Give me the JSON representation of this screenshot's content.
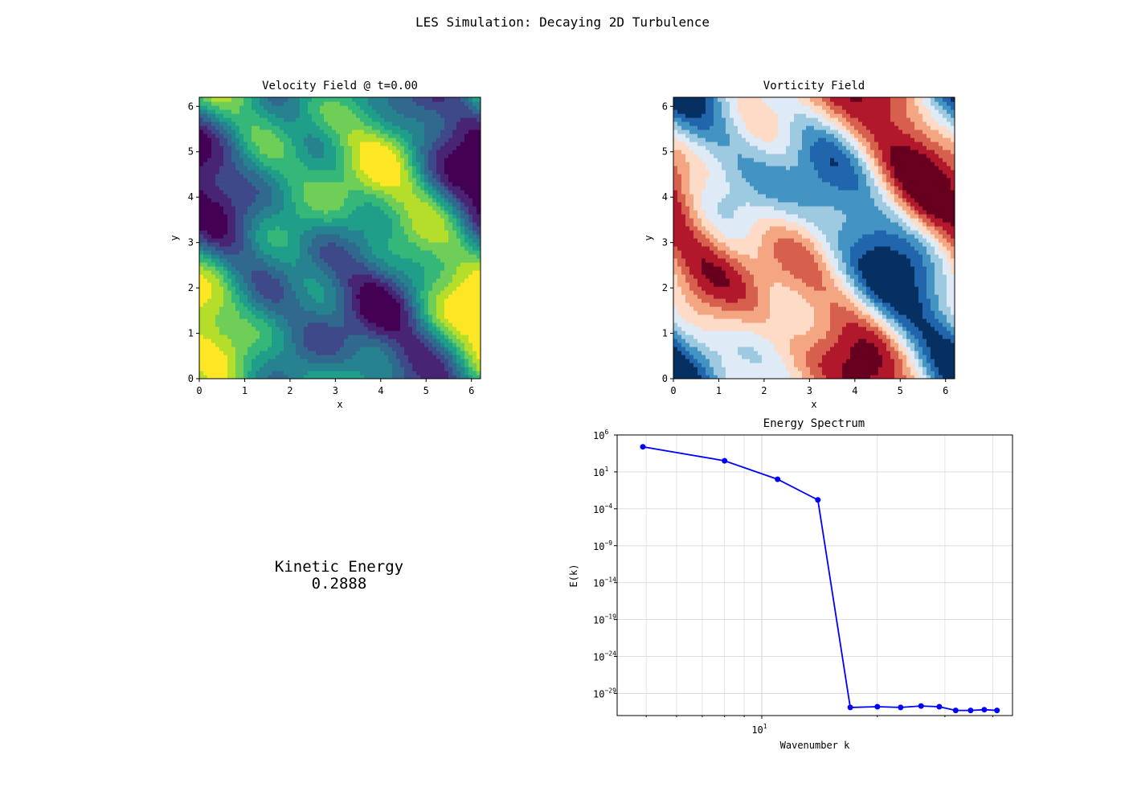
{
  "figure": {
    "title": "LES Simulation: Decaying 2D Turbulence"
  },
  "kinetic_energy": {
    "label": "Kinetic Energy",
    "value": "0.2888"
  },
  "chart_data": [
    {
      "type": "heatmap",
      "title": "Velocity Field @ t=0.00",
      "xlabel": "x",
      "ylabel": "y",
      "xlim": [
        0,
        6.2
      ],
      "ylim": [
        0,
        6.2
      ],
      "xticks": [
        "0",
        "1",
        "2",
        "3",
        "4",
        "5",
        "6"
      ],
      "yticks": [
        "0",
        "1",
        "2",
        "3",
        "4",
        "5",
        "6"
      ],
      "colormap": "viridis",
      "colors": [
        "#440154",
        "#482475",
        "#3e4989",
        "#31688e",
        "#26828e",
        "#1f9e89",
        "#35b779",
        "#6ece58",
        "#b5de2b",
        "#fde725"
      ]
    },
    {
      "type": "heatmap",
      "title": "Vorticity Field",
      "xlabel": "x",
      "ylabel": "y",
      "xlim": [
        0,
        6.2
      ],
      "ylim": [
        0,
        6.2
      ],
      "xticks": [
        "0",
        "1",
        "2",
        "3",
        "4",
        "5",
        "6"
      ],
      "yticks": [
        "0",
        "1",
        "2",
        "3",
        "4",
        "5",
        "6"
      ],
      "colormap": "RdBu",
      "colors": [
        "#67001f",
        "#b2182b",
        "#d6604d",
        "#f4a582",
        "#fddbc7",
        "#deebf7",
        "#9ecae1",
        "#4393c3",
        "#2166ac",
        "#053061"
      ]
    },
    {
      "type": "line",
      "title": "Energy Spectrum",
      "xlabel": "Wavenumber k",
      "ylabel": "E(k)",
      "xscale": "log",
      "yscale": "log",
      "xlim": [
        4.2,
        45
      ],
      "ylim_log10": [
        -32,
        6
      ],
      "grid": true,
      "color": "#0000ff",
      "xticks": [
        {
          "value": 10,
          "label": "10",
          "exp": "1"
        }
      ],
      "yticks": [
        {
          "log10": 6,
          "label": "10",
          "exp": "6"
        },
        {
          "log10": 1,
          "label": "10",
          "exp": "1"
        },
        {
          "log10": -4,
          "label": "10",
          "exp": "−4"
        },
        {
          "log10": -9,
          "label": "10",
          "exp": "−9"
        },
        {
          "log10": -14,
          "label": "10",
          "exp": "−14"
        },
        {
          "log10": -19,
          "label": "10",
          "exp": "−19"
        },
        {
          "log10": -24,
          "label": "10",
          "exp": "−24"
        },
        {
          "log10": -29,
          "label": "10",
          "exp": "−29"
        }
      ],
      "x": [
        4.9,
        8.0,
        11.0,
        14.0,
        17.0,
        20.0,
        23.0,
        26.0,
        29.0,
        32.0,
        35.0,
        38.0,
        41.0
      ],
      "log10_y": [
        4.4,
        2.5,
        0.0,
        -2.8,
        -30.9,
        -30.8,
        -30.9,
        -30.7,
        -30.8,
        -31.3,
        -31.3,
        -31.2,
        -31.3
      ]
    }
  ]
}
